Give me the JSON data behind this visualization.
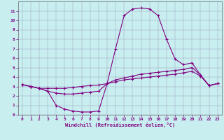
{
  "xlabel": "Windchill (Refroidissement éolien,°C)",
  "xlim": [
    -0.5,
    23.5
  ],
  "ylim": [
    0,
    12
  ],
  "xticks": [
    0,
    1,
    2,
    3,
    4,
    5,
    6,
    7,
    8,
    9,
    10,
    11,
    12,
    13,
    14,
    15,
    16,
    17,
    18,
    19,
    20,
    21,
    22,
    23
  ],
  "yticks": [
    0,
    1,
    2,
    3,
    4,
    5,
    6,
    7,
    8,
    9,
    10,
    11
  ],
  "bg_color": "#c8eef0",
  "line_color": "#800080",
  "grid_color": "#9999bb",
  "curve1_x": [
    0,
    1,
    2,
    3,
    4,
    5,
    6,
    7,
    8,
    9,
    10,
    11,
    12,
    13,
    14,
    15,
    16,
    17,
    18,
    19,
    20,
    21,
    22,
    23
  ],
  "curve1_y": [
    3.2,
    3.0,
    2.8,
    2.5,
    1.0,
    0.6,
    0.4,
    0.3,
    0.3,
    0.4,
    3.3,
    7.0,
    10.5,
    11.2,
    11.3,
    11.2,
    10.5,
    8.0,
    5.9,
    5.3,
    5.5,
    4.2,
    3.1,
    3.3
  ],
  "curve2_x": [
    0,
    1,
    2,
    3,
    4,
    5,
    6,
    7,
    8,
    9,
    10,
    11,
    12,
    13,
    14,
    15,
    16,
    17,
    18,
    19,
    20,
    21,
    22,
    23
  ],
  "curve2_y": [
    3.2,
    3.0,
    2.8,
    2.5,
    2.3,
    2.2,
    2.2,
    2.3,
    2.4,
    2.5,
    3.3,
    3.7,
    3.9,
    4.1,
    4.3,
    4.4,
    4.5,
    4.6,
    4.7,
    4.8,
    5.0,
    4.2,
    3.1,
    3.3
  ],
  "curve3_x": [
    0,
    1,
    2,
    3,
    4,
    5,
    6,
    7,
    8,
    9,
    10,
    11,
    12,
    13,
    14,
    15,
    16,
    17,
    18,
    19,
    20,
    21,
    22,
    23
  ],
  "curve3_y": [
    3.2,
    3.0,
    2.8,
    2.8,
    2.8,
    2.8,
    2.9,
    3.0,
    3.1,
    3.15,
    3.3,
    3.5,
    3.7,
    3.8,
    3.9,
    4.0,
    4.1,
    4.2,
    4.3,
    4.45,
    4.6,
    4.1,
    3.1,
    3.3
  ]
}
